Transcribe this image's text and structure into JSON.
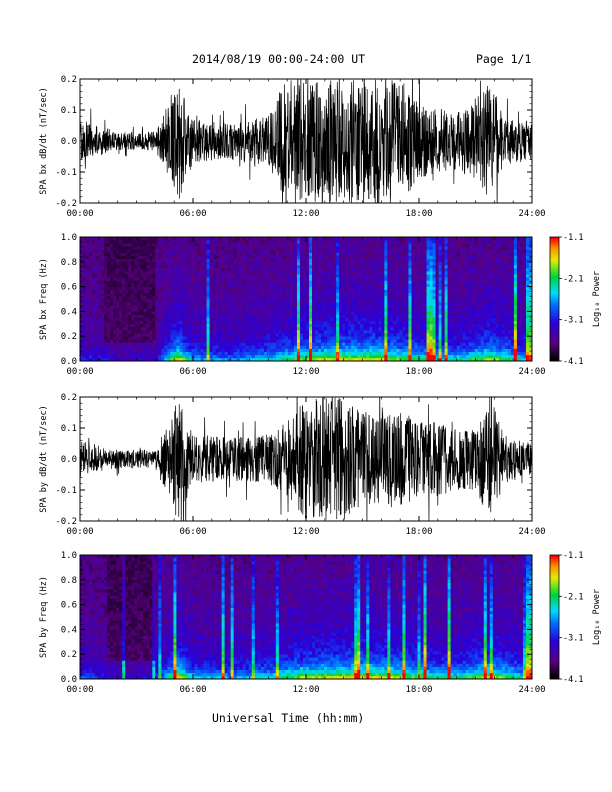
{
  "header": {
    "title": "2014/08/19  00:00-24:00 UT",
    "page": "Page 1/1"
  },
  "x_axis_title": "Universal Time (hh:mm)",
  "chart_data": [
    {
      "type": "line",
      "ylabel": "SPA bx dB/dt (nT/sec)",
      "ylim": [
        -0.2,
        0.2
      ],
      "yticks": [
        "-0.2",
        "-0.1",
        "0.0",
        "0.1",
        "0.2"
      ],
      "xlim": [
        0,
        24
      ],
      "xticks": [
        "00:00",
        "06:00",
        "12:00",
        "18:00",
        "24:00"
      ],
      "x_hours": [
        0,
        2,
        4,
        5.2,
        6,
        8,
        10,
        11,
        12,
        13,
        14,
        15,
        16,
        17,
        18,
        19,
        20,
        21,
        21.8,
        22.5,
        24
      ],
      "amplitude": [
        0.07,
        0.03,
        0.03,
        0.2,
        0.07,
        0.06,
        0.08,
        0.2,
        0.2,
        0.2,
        0.2,
        0.2,
        0.2,
        0.2,
        0.13,
        0.1,
        0.1,
        0.12,
        0.2,
        0.08,
        0.06
      ],
      "series": [
        {
          "color": "#000000"
        }
      ]
    },
    {
      "type": "heatmap",
      "ylabel": "SPA bx Freq (Hz)",
      "ylim": [
        0,
        1.0
      ],
      "yticks": [
        "0.0",
        "0.2",
        "0.4",
        "0.6",
        "0.8",
        "1.0"
      ],
      "xlim": [
        0,
        24
      ],
      "xticks": [
        "00:00",
        "06:00",
        "12:00",
        "18:00",
        "24:00"
      ],
      "colorbar": {
        "label": "Log₁₀ Power",
        "ticks": [
          "-1.1",
          "-2.1",
          "-3.1",
          "-4.1"
        ],
        "range": [
          -4.1,
          -1.1
        ]
      },
      "activity_hours": [
        0,
        2,
        4,
        5.2,
        6,
        8,
        10,
        12,
        14,
        16,
        18,
        20,
        21.8,
        24
      ],
      "activity_level": [
        0.3,
        0.15,
        0.15,
        0.9,
        0.45,
        0.4,
        0.55,
        0.75,
        0.85,
        0.85,
        0.65,
        0.55,
        0.8,
        0.45
      ]
    },
    {
      "type": "line",
      "ylabel": "SPA by dB/dt (nT/sec)",
      "ylim": [
        -0.2,
        0.2
      ],
      "yticks": [
        "-0.2",
        "-0.1",
        "0.0",
        "0.1",
        "0.2"
      ],
      "xlim": [
        0,
        24
      ],
      "xticks": [
        "00:00",
        "06:00",
        "12:00",
        "18:00",
        "24:00"
      ],
      "x_hours": [
        0,
        2,
        4,
        5.2,
        6,
        8,
        10,
        11,
        12,
        13,
        14,
        15,
        16,
        17,
        18,
        19,
        20,
        21,
        21.8,
        22.5,
        24
      ],
      "amplitude": [
        0.06,
        0.03,
        0.03,
        0.2,
        0.08,
        0.07,
        0.08,
        0.12,
        0.2,
        0.2,
        0.2,
        0.16,
        0.16,
        0.16,
        0.12,
        0.12,
        0.1,
        0.1,
        0.2,
        0.08,
        0.05
      ],
      "series": [
        {
          "color": "#000000"
        }
      ]
    },
    {
      "type": "heatmap",
      "ylabel": "SPA by Freq (Hz)",
      "ylim": [
        0,
        1.0
      ],
      "yticks": [
        "0.0",
        "0.2",
        "0.4",
        "0.6",
        "0.8",
        "1.0"
      ],
      "xlim": [
        0,
        24
      ],
      "xticks": [
        "00:00",
        "06:00",
        "12:00",
        "18:00",
        "24:00"
      ],
      "colorbar": {
        "label": "Log₁₀ Power",
        "ticks": [
          "-1.1",
          "-2.1",
          "-3.1",
          "-4.1"
        ],
        "range": [
          -4.1,
          -1.1
        ]
      },
      "activity_hours": [
        0,
        2,
        4,
        5.2,
        6,
        8,
        10,
        12,
        14,
        16,
        18,
        20,
        21.8,
        24
      ],
      "activity_level": [
        0.35,
        0.15,
        0.2,
        0.9,
        0.5,
        0.45,
        0.55,
        0.8,
        0.85,
        0.85,
        0.7,
        0.6,
        0.85,
        0.5
      ]
    }
  ]
}
